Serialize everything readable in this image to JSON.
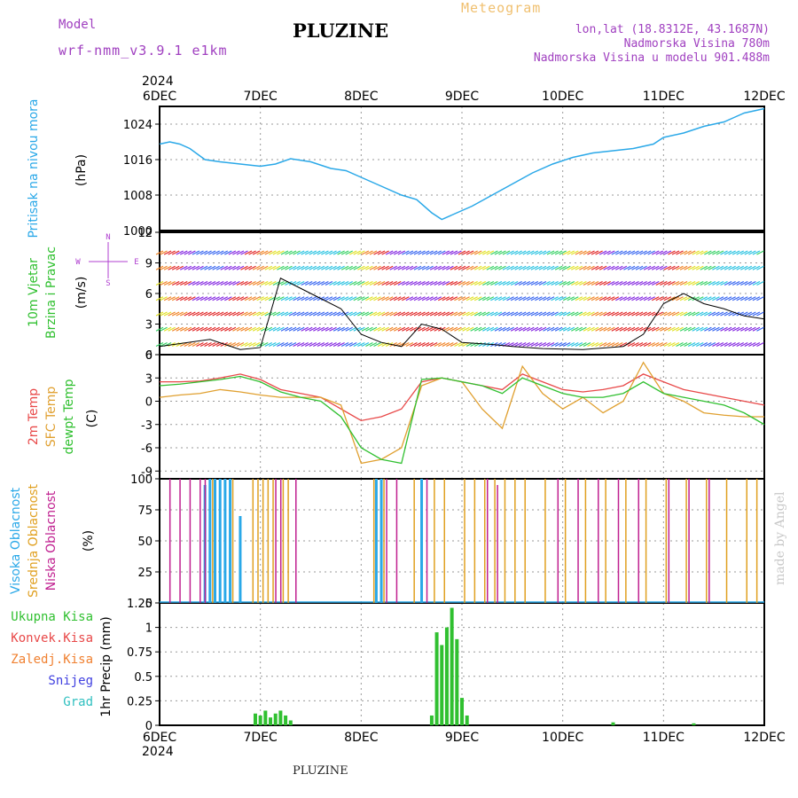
{
  "header": {
    "title": "PLUZINE",
    "meteogram": "Meteogram",
    "model_label": "Model",
    "model_name": "wrf-nmm_v3.9.1 e1km",
    "lonlat": "lon,lat (18.8312E, 43.1687N)",
    "elevation": "Nadmorska Visina 780m",
    "model_elevation": "Nadmorska Visina u modelu 901.488m",
    "year_top": "2024",
    "year_bottom": "2024"
  },
  "footer": {
    "station": "PLUZINE",
    "made_by": "made by Angel"
  },
  "colors": {
    "pressure": "#2aa8e8",
    "t2m": "#e84848",
    "sfc": "#e0a030",
    "dew": "#30c030",
    "low_cloud": "#c02090",
    "mid_cloud": "#e0a020",
    "high_cloud": "#2aa8e8",
    "precip": "#30c030",
    "wind_line": "#000000"
  },
  "chart_data": [
    {
      "type": "line",
      "name": "pressure",
      "ylabel_left": "Pritisak na nivou mora",
      "ylabel_unit": "(hPa)",
      "ylim": [
        1000,
        1028
      ],
      "yticks": [
        1008,
        1016,
        1024
      ],
      "yticks_extra": [
        1000
      ],
      "x_dates": [
        "6DEC",
        "7DEC",
        "8DEC",
        "9DEC",
        "10DEC",
        "11DEC",
        "12DEC"
      ],
      "x": [
        0,
        0.1,
        0.2,
        0.3,
        0.45,
        0.6,
        0.8,
        1.0,
        1.15,
        1.3,
        1.5,
        1.7,
        1.85,
        2.0,
        2.2,
        2.4,
        2.55,
        2.7,
        2.8,
        2.9,
        3.1,
        3.3,
        3.5,
        3.7,
        3.9,
        4.1,
        4.3,
        4.5,
        4.7,
        4.9,
        5.0,
        5.2,
        5.4,
        5.6,
        5.7,
        5.8,
        5.9,
        6.0
      ],
      "y": [
        1019.5,
        1020,
        1019.5,
        1018.5,
        1016,
        1015.5,
        1015,
        1014.5,
        1015,
        1016.2,
        1015.5,
        1014,
        1013.5,
        1012,
        1010,
        1008,
        1007,
        1004,
        1002.5,
        1003.5,
        1005.5,
        1008,
        1010.5,
        1013,
        1015,
        1016.5,
        1017.5,
        1018,
        1018.5,
        1019.5,
        1021,
        1022,
        1023.5,
        1024.5,
        1025.5,
        1026.5,
        1027,
        1027.5
      ]
    },
    {
      "type": "line",
      "name": "wind",
      "ylabel_left": "10m Vjetar",
      "ylabel_left2": "Brzina i Pravac",
      "ylabel_unit": "(m/s)",
      "compass": {
        "n": "N",
        "s": "S",
        "w": "W",
        "e": "E"
      },
      "ylim": [
        0,
        12
      ],
      "yticks": [
        0,
        3,
        6,
        9,
        12
      ],
      "x": [
        0,
        0.5,
        0.8,
        1.0,
        1.2,
        1.4,
        1.6,
        1.8,
        2.0,
        2.2,
        2.4,
        2.6,
        2.8,
        3.0,
        3.3,
        3.5,
        3.8,
        4.2,
        4.6,
        4.8,
        5.0,
        5.2,
        5.4,
        5.6,
        5.8,
        6.0
      ],
      "y": [
        0.8,
        1.5,
        0.5,
        0.7,
        7.5,
        6.5,
        5.5,
        4.5,
        2.0,
        1.2,
        0.8,
        3.0,
        2.5,
        1.2,
        1.0,
        0.8,
        0.6,
        0.5,
        0.8,
        2.0,
        5.0,
        6.0,
        5.0,
        4.5,
        3.8,
        3.5
      ]
    },
    {
      "type": "line",
      "name": "temperature",
      "ylabel_left": "2m Temp",
      "ylabel_left2": "SFC Temp",
      "ylabel_left3": "dewpt Temp",
      "ylabel_unit": "(C)",
      "ylim": [
        -10,
        6
      ],
      "yticks": [
        -9,
        -6,
        -3,
        0,
        3,
        6
      ],
      "x": [
        0,
        0.2,
        0.4,
        0.6,
        0.8,
        1.0,
        1.2,
        1.4,
        1.6,
        1.8,
        2.0,
        2.2,
        2.4,
        2.6,
        2.8,
        3.0,
        3.2,
        3.4,
        3.6,
        3.8,
        4.0,
        4.2,
        4.4,
        4.6,
        4.8,
        5.0,
        5.2,
        5.4,
        5.6,
        5.8,
        6.0
      ],
      "series": [
        {
          "name": "2m Temp",
          "color": "#e84848",
          "values": [
            2.5,
            2.5,
            2.6,
            3.0,
            3.5,
            2.8,
            1.5,
            1.0,
            0.5,
            -1.0,
            -2.5,
            -2.0,
            -1.0,
            2.5,
            3.0,
            2.5,
            2.0,
            1.5,
            3.5,
            2.5,
            1.5,
            1.2,
            1.5,
            2.0,
            3.5,
            2.5,
            1.5,
            1.0,
            0.5,
            0.0,
            -0.5
          ]
        },
        {
          "name": "SFC Temp",
          "color": "#e0a030",
          "values": [
            0.5,
            0.8,
            1.0,
            1.5,
            1.2,
            0.8,
            0.5,
            0.5,
            0.5,
            -0.5,
            -8.0,
            -7.5,
            -6.0,
            2.0,
            3.0,
            2.5,
            -1.0,
            -3.5,
            4.5,
            1.0,
            -1.0,
            0.5,
            -1.5,
            0.0,
            5.0,
            1.0,
            0.0,
            -1.5,
            -1.8,
            -2.0,
            -2.0
          ]
        },
        {
          "name": "dewpt Temp",
          "color": "#30c030",
          "values": [
            2.0,
            2.2,
            2.5,
            2.8,
            3.2,
            2.5,
            1.2,
            0.5,
            0.0,
            -2.0,
            -6.0,
            -7.5,
            -8.0,
            2.8,
            3.0,
            2.5,
            2.0,
            1.0,
            3.0,
            2.0,
            1.0,
            0.5,
            0.5,
            1.0,
            2.5,
            1.0,
            0.5,
            0.0,
            -0.5,
            -1.5,
            -3.0
          ]
        }
      ]
    },
    {
      "type": "bar",
      "name": "clouds",
      "ylabel_left": "Visoka Oblacnost",
      "ylabel_left2": "Srednja Oblacnost",
      "ylabel_left3": "Niska Oblacnost",
      "ylabel_unit": "(%)",
      "ylim": [
        0,
        100
      ],
      "yticks": [
        0,
        25,
        50,
        75,
        100
      ],
      "series": [
        {
          "name": "Visoka Oblacnost",
          "color": "#2aa8e8",
          "x": [
            0.45,
            0.5,
            0.55,
            0.6,
            0.65,
            0.7,
            0.8,
            2.15,
            2.2,
            2.6
          ],
          "values": [
            95,
            100,
            100,
            100,
            100,
            100,
            70,
            100,
            100,
            100
          ]
        },
        {
          "name": "Srednja Oblacnost",
          "color": "#e0a020",
          "x": [
            0.5,
            0.7,
            0.9,
            0.95,
            1.0,
            1.05,
            1.1,
            1.2,
            1.25,
            2.1,
            2.2,
            2.5,
            2.7,
            2.8,
            3.0,
            3.1,
            3.2,
            3.3,
            3.4,
            3.5,
            3.6,
            3.8,
            4.0,
            4.2,
            4.4,
            4.6,
            4.8,
            5.0,
            5.2,
            5.4,
            5.6,
            5.8,
            5.9
          ],
          "values": [
            100,
            100,
            100,
            100,
            100,
            100,
            100,
            100,
            100,
            100,
            100,
            100,
            100,
            100,
            100,
            100,
            100,
            100,
            100,
            100,
            100,
            100,
            100,
            100,
            100,
            100,
            100,
            100,
            100,
            100,
            100,
            100,
            100
          ]
        },
        {
          "name": "Niska Oblacnost",
          "color": "#c02090",
          "x": [
            0.05,
            0.15,
            0.25,
            0.35,
            0.4,
            1.1,
            1.15,
            1.3,
            2.2,
            2.3,
            2.6,
            3.2,
            3.3,
            3.9,
            4.1,
            4.3,
            4.5,
            4.7,
            5.0,
            5.2,
            5.4
          ],
          "values": [
            100,
            100,
            100,
            100,
            100,
            100,
            100,
            100,
            100,
            100,
            100,
            100,
            95,
            100,
            100,
            100,
            100,
            100,
            100,
            100,
            100
          ]
        }
      ]
    },
    {
      "type": "bar",
      "name": "precip",
      "ylabel_left": "1hr Precip",
      "ylabel_unit": "(mm)",
      "legend": [
        "Ukupna Kisa",
        "Konvek.Kisa",
        "Zaledj.Kisa",
        "Snijeg",
        "Grad"
      ],
      "legend_colors": [
        "#30c030",
        "#e84848",
        "#f08030",
        "#4040e0",
        "#30c0c0"
      ],
      "ylim": [
        0,
        1.25
      ],
      "yticks": [
        0,
        0.25,
        0.5,
        0.75,
        1,
        1.25
      ],
      "x": [
        0.95,
        1.0,
        1.05,
        1.1,
        1.15,
        1.2,
        1.25,
        1.3,
        2.7,
        2.75,
        2.8,
        2.85,
        2.9,
        2.95,
        3.0,
        3.05,
        4.5,
        5.3
      ],
      "values": [
        0.12,
        0.1,
        0.15,
        0.08,
        0.12,
        0.15,
        0.1,
        0.05,
        0.1,
        0.95,
        0.82,
        1.0,
        1.2,
        0.88,
        0.28,
        0.1,
        0.03,
        0.02
      ]
    }
  ]
}
